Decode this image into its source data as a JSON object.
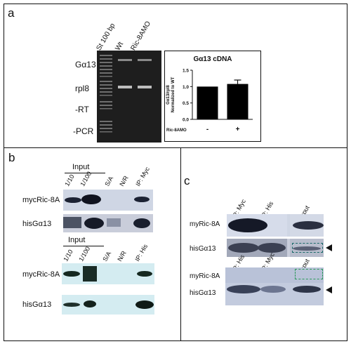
{
  "panels": {
    "a": {
      "label": "a",
      "lanes": [
        "St 100 bp",
        "Wt",
        "Ric-8AMO"
      ],
      "rows": [
        "Gα13",
        "rpl8",
        "-RT",
        "-PCR"
      ],
      "chart_data": {
        "type": "bar",
        "title": "Gα13 cDNA",
        "ylabel": "Gα13/rpl8 Normalized to WT",
        "xlabel": "Ric-8AMO",
        "categories": [
          "-",
          "+"
        ],
        "values": [
          1.0,
          1.08
        ],
        "error": [
          0,
          0.12
        ],
        "ylim": [
          0,
          1.5
        ],
        "yticks": [
          "0.0",
          "0.5",
          "1.0",
          "1.5"
        ],
        "colors": {
          "bar": "#000000"
        }
      }
    },
    "b": {
      "label": "b",
      "top": {
        "group_label": "Input",
        "lanes": [
          "1/10",
          "1/100",
          "S/A",
          "N/R",
          "IP: Myc"
        ],
        "rows": [
          "mycRic-8A",
          "hisGα13"
        ]
      },
      "bottom": {
        "group_label": "Input",
        "lanes": [
          "1/10",
          "1/100",
          "S/A",
          "N/R",
          "IP: His"
        ],
        "rows": [
          "mycRic-8A",
          "hisGα13"
        ]
      }
    },
    "c": {
      "label": "c",
      "top": {
        "lanes": [
          "IP: Myc",
          "IP: His",
          "input"
        ],
        "rows": [
          "myRic-8A",
          "hisGα13"
        ]
      },
      "bottom": {
        "lanes": [
          "IP: His",
          "IP: Myc",
          "input"
        ],
        "rows": [
          "myRic-8A",
          "hisGα13"
        ]
      }
    }
  }
}
